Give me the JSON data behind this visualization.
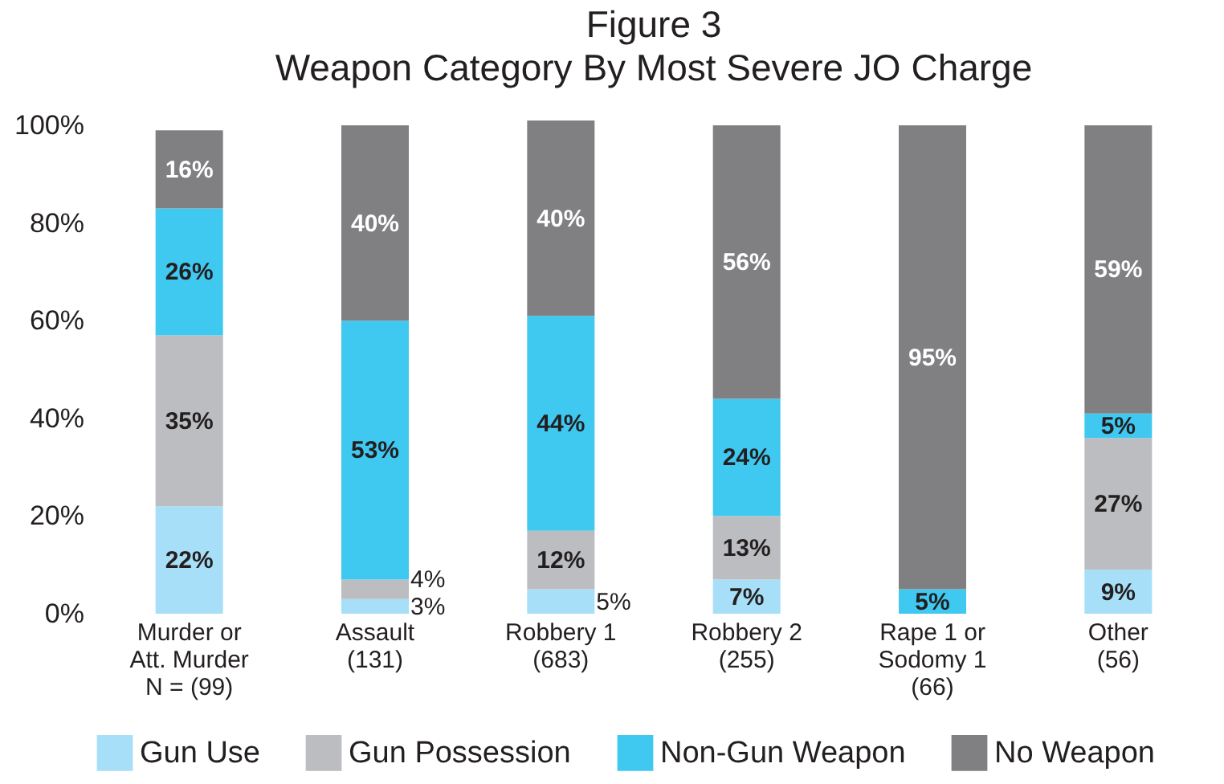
{
  "chart_data": {
    "type": "bar",
    "stacked": true,
    "title": "Figure 3",
    "subtitle": "Weapon Category By Most Severe JO Charge",
    "categories": [
      "Murder or\nAtt. Murder\nN =  (99)",
      "Assault\n\n(131)",
      "Robbery 1\n\n(683)",
      "Robbery 2\n\n(255)",
      "Rape 1 or\nSodomy 1\n(66)",
      "Other\n\n(56)"
    ],
    "series": [
      {
        "name": "Gun Use",
        "color": "#a6dff7",
        "values": [
          22,
          3,
          5,
          7,
          null,
          9
        ],
        "value_labels": [
          "22%",
          "3%",
          "5%",
          "7%",
          null,
          "9%"
        ]
      },
      {
        "name": "Gun Possession",
        "color": "#bcbdc0",
        "values": [
          35,
          4,
          12,
          13,
          null,
          27
        ],
        "value_labels": [
          "35%",
          "4%",
          "12%",
          "13%",
          null,
          "27%"
        ]
      },
      {
        "name": "Non-Gun Weapon",
        "color": "#3fc8f0",
        "values": [
          26,
          53,
          44,
          24,
          5,
          5
        ],
        "value_labels": [
          "26%",
          "53%",
          "44%",
          "24%",
          "5%",
          "5%"
        ]
      },
      {
        "name": "No Weapon",
        "color": "#808083",
        "values": [
          16,
          40,
          40,
          56,
          95,
          59
        ],
        "value_labels": [
          "16%",
          "40%",
          "40%",
          "56%",
          "95%",
          "59%"
        ]
      }
    ],
    "ylim": [
      0,
      101
    ],
    "yticks": [
      {
        "value": 0,
        "label": "0%"
      },
      {
        "value": 20,
        "label": "20%"
      },
      {
        "value": 40,
        "label": "40%"
      },
      {
        "value": 60,
        "label": "60%"
      },
      {
        "value": 80,
        "label": "80%"
      },
      {
        "value": 100,
        "label": "100%"
      }
    ],
    "grid": false,
    "legend": "bottom"
  }
}
